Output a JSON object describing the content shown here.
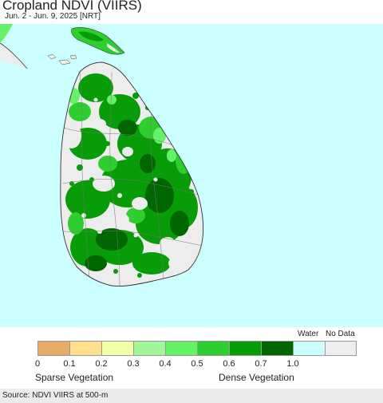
{
  "header": {
    "title": "Cropland NDVI (VIIRS)",
    "subtitle": "Jun. 2 - Jun. 9, 2025 [NRT]"
  },
  "map": {
    "water_color": "#ccffff",
    "land_nodata_color": "#ededed"
  },
  "legend": {
    "water_label": "Water",
    "nodata_label": "No Data",
    "swatches": [
      {
        "color": "#e6ac66"
      },
      {
        "color": "#ffde8c"
      },
      {
        "color": "#f0ffa8"
      },
      {
        "color": "#a2f59a"
      },
      {
        "color": "#66f266"
      },
      {
        "color": "#2fce2f"
      },
      {
        "color": "#089d08"
      },
      {
        "color": "#006600"
      },
      {
        "color": "#ccffff"
      },
      {
        "color": "#ededed"
      }
    ],
    "ticks": [
      "0",
      "0.1",
      "0.2",
      "0.3",
      "0.4",
      "0.5",
      "0.6",
      "0.7",
      "1.0"
    ],
    "sparse_label": "Sparse Vegetation",
    "dense_label": "Dense Vegetation"
  },
  "footer": {
    "source": "Source: NDVI VIIRS at 500-m"
  }
}
